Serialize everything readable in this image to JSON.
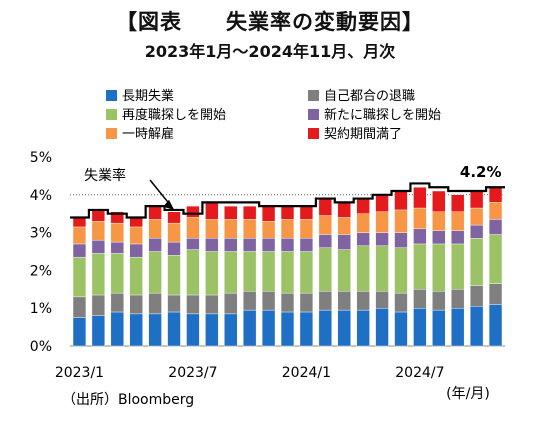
{
  "title": "【図表　　失業率の変動要因】",
  "subtitle": "2023年1月～2024年11月、月次",
  "source": "（出所）Bloomberg",
  "chart_data": {
    "type": "bar",
    "stacked": true,
    "unit_label": "(年/月)",
    "x": [
      "2023/1",
      "2023/2",
      "2023/3",
      "2023/4",
      "2023/5",
      "2023/6",
      "2023/7",
      "2023/8",
      "2023/9",
      "2023/10",
      "2023/11",
      "2023/12",
      "2024/1",
      "2024/2",
      "2024/3",
      "2024/4",
      "2024/5",
      "2024/6",
      "2024/7",
      "2024/8",
      "2024/9",
      "2024/10",
      "2024/11"
    ],
    "x_tick_labels": [
      {
        "index": 0,
        "label": "2023/1"
      },
      {
        "index": 6,
        "label": "2023/7"
      },
      {
        "index": 12,
        "label": "2024/1"
      },
      {
        "index": 18,
        "label": "2024/7"
      }
    ],
    "y_ticks": [
      "0%",
      "1%",
      "2%",
      "3%",
      "4%",
      "5%"
    ],
    "ylim": [
      0,
      5
    ],
    "legend_position": "top",
    "series": [
      {
        "name": "長期失業",
        "color": "#1f6fc5",
        "values": [
          0.75,
          0.8,
          0.9,
          0.85,
          0.85,
          0.9,
          0.85,
          0.85,
          0.85,
          0.95,
          0.95,
          0.9,
          0.9,
          0.95,
          0.95,
          0.95,
          1.0,
          0.9,
          1.0,
          0.95,
          1.0,
          1.05,
          1.1
        ]
      },
      {
        "name": "自己都合の退職",
        "color": "#7f7f7f",
        "values": [
          0.55,
          0.55,
          0.5,
          0.5,
          0.55,
          0.45,
          0.5,
          0.5,
          0.55,
          0.5,
          0.5,
          0.5,
          0.5,
          0.5,
          0.5,
          0.5,
          0.45,
          0.5,
          0.5,
          0.5,
          0.5,
          0.55,
          0.55
        ]
      },
      {
        "name": "再度職探しを開始",
        "color": "#9bc265",
        "values": [
          1.05,
          1.1,
          1.05,
          1.0,
          1.1,
          1.05,
          1.2,
          1.15,
          1.1,
          1.05,
          1.05,
          1.1,
          1.1,
          1.15,
          1.1,
          1.2,
          1.2,
          1.2,
          1.2,
          1.25,
          1.2,
          1.25,
          1.3
        ]
      },
      {
        "name": "新たに職探しを開始",
        "color": "#8064a2",
        "values": [
          0.35,
          0.35,
          0.3,
          0.35,
          0.35,
          0.35,
          0.3,
          0.35,
          0.35,
          0.35,
          0.35,
          0.35,
          0.35,
          0.35,
          0.4,
          0.35,
          0.35,
          0.4,
          0.4,
          0.35,
          0.35,
          0.35,
          0.4
        ]
      },
      {
        "name": "一時解雇",
        "color": "#f79646",
        "values": [
          0.45,
          0.5,
          0.5,
          0.45,
          0.5,
          0.5,
          0.55,
          0.5,
          0.5,
          0.5,
          0.45,
          0.5,
          0.5,
          0.5,
          0.45,
          0.5,
          0.55,
          0.6,
          0.55,
          0.5,
          0.5,
          0.45,
          0.45
        ]
      },
      {
        "name": "契約期間満了",
        "color": "#e41a1c",
        "values": [
          0.25,
          0.3,
          0.3,
          0.25,
          0.35,
          0.3,
          0.3,
          0.45,
          0.35,
          0.35,
          0.4,
          0.35,
          0.35,
          0.45,
          0.4,
          0.4,
          0.45,
          0.5,
          0.55,
          0.55,
          0.45,
          0.45,
          0.4
        ]
      },
      {
        "name": "失業率",
        "type": "line",
        "color": "#000000",
        "values": [
          3.4,
          3.6,
          3.5,
          3.4,
          3.7,
          3.6,
          3.5,
          3.8,
          3.8,
          3.8,
          3.7,
          3.7,
          3.7,
          3.9,
          3.8,
          3.9,
          4.0,
          4.1,
          4.3,
          4.2,
          4.1,
          4.1,
          4.2
        ]
      }
    ],
    "annotations": [
      {
        "text": "失業率",
        "target_index": 6
      },
      {
        "text": "4.2%",
        "target_index": 22
      }
    ],
    "reference_line": {
      "value": 4.0,
      "style": "dotted"
    }
  }
}
